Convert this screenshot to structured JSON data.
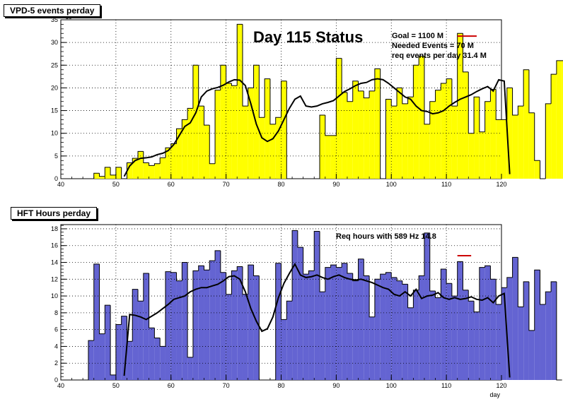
{
  "chart_data": [
    {
      "type": "bar",
      "title": "VPD-5 events perday",
      "annotation_main": "Day 115 Status",
      "info_lines": [
        "Goal =  1100 M",
        "Needed Events =    70 M",
        "req events per day 31.4 M"
      ],
      "exponent_label": "×10⁶",
      "xlabel": "",
      "ylabel": "",
      "xlim": [
        40,
        120
      ],
      "ylim": [
        0,
        35
      ],
      "xticks": [
        40,
        50,
        60,
        70,
        80,
        90,
        100,
        110,
        120
      ],
      "yticks": [
        0,
        5,
        10,
        15,
        20,
        25,
        30,
        35
      ],
      "grid": true,
      "colors": {
        "fill": "#ffff00",
        "line": "#000000",
        "goal_marker": "#cc0000"
      },
      "bins": {
        "x_start": 45,
        "bin_width": 1,
        "values": [
          0,
          1.2,
          0.5,
          2.5,
          0.8,
          2.5,
          0,
          3.5,
          4.5,
          6,
          3.5,
          2.9,
          3.3,
          4.6,
          6.8,
          7.7,
          11,
          13,
          15.5,
          25,
          16,
          11.8,
          3.3,
          19.5,
          25,
          21,
          20.5,
          34,
          16,
          20,
          25,
          13.5,
          22,
          12,
          13.5,
          21.5,
          0,
          0,
          0,
          0,
          0,
          0,
          14,
          9.5,
          9.5,
          26.5,
          19,
          17,
          21.5,
          19.3,
          17.8,
          19.3,
          24.2,
          0,
          17.5,
          16,
          20,
          16.5,
          18,
          25,
          27,
          12,
          17,
          19.5,
          21,
          22,
          16,
          32,
          23.5,
          10,
          18,
          10.3,
          17,
          19.7,
          13,
          13,
          20,
          14,
          16,
          24,
          14.5,
          4,
          0,
          16.5,
          23,
          26,
          26,
          24.5,
          26.5,
          12,
          28.2,
          21.5,
          15.5,
          0
        ]
      },
      "trend": {
        "x_start": 51,
        "values": [
          0.5,
          2.8,
          4.0,
          4.5,
          4.6,
          4.8,
          5.3,
          5.6,
          6.2,
          7.5,
          9.5,
          11.5,
          12.3,
          14.5,
          18.0,
          19.3,
          19.8,
          20.1,
          20.6,
          21.3,
          21.8,
          21.7,
          20.5,
          16.5,
          12.0,
          9.0,
          8.2,
          8.8,
          10.5,
          13.0,
          15.5,
          17.5,
          18.2,
          16.0,
          15.8,
          16.0,
          16.5,
          16.8,
          17.2,
          18.2,
          19.2,
          19.8,
          20.5,
          21.0,
          21.2,
          21.8,
          22.0,
          21.8,
          21.0,
          20.0,
          19.0,
          18.0,
          17.5,
          16.0,
          15.0,
          14.8,
          14.3,
          14.5,
          15.0,
          16.0,
          16.8,
          17.5,
          18.0,
          18.5,
          19.2,
          19.8,
          20.3,
          19.3,
          21.8,
          21.5,
          1.0
        ]
      },
      "goal_marker": {
        "x": [
          112,
          115.5
        ],
        "y": 31.4
      }
    },
    {
      "type": "bar",
      "title": "HFT Hours perday",
      "annotation_main": "Req hours with  589 Hz 14.8",
      "xlabel": "day",
      "ylabel": "",
      "xlim": [
        40,
        120
      ],
      "ylim": [
        0,
        18.5
      ],
      "xticks": [
        40,
        50,
        60,
        70,
        80,
        90,
        100,
        110,
        120
      ],
      "yticks": [
        0,
        2,
        4,
        6,
        8,
        10,
        12,
        14,
        16,
        18
      ],
      "grid": true,
      "colors": {
        "fill": "#6464d2",
        "line": "#000000",
        "goal_marker": "#cc0000"
      },
      "bins": {
        "x_start": 45,
        "bin_width": 1,
        "values": [
          4.7,
          13.8,
          5.5,
          8.9,
          0.6,
          6.6,
          7.6,
          4.6,
          10.8,
          9.4,
          12.7,
          6.2,
          5.0,
          4.0,
          12.9,
          12.8,
          11.8,
          14.0,
          2.7,
          13.0,
          13.6,
          13.1,
          14.2,
          15.4,
          12.8,
          10.2,
          13.0,
          13.5,
          10.2,
          13.7,
          12.4,
          0,
          0,
          0,
          13.9,
          7.2,
          9.4,
          17.8,
          15.8,
          12.6,
          13.0,
          17.7,
          10.5,
          13.4,
          13.7,
          13.4,
          13.9,
          12.7,
          11.8,
          14.4,
          12.4,
          7.5,
          12.0,
          12.6,
          12.8,
          12.2,
          11.8,
          11.4,
          8.6,
          10.7,
          12.4,
          17.5,
          10.6,
          9.8,
          13.2,
          11.5,
          10.0,
          14.1,
          10.7,
          9.4,
          8.1,
          13.4,
          13.6,
          12.0,
          9.0,
          11.0,
          12.2,
          14.6,
          8.7,
          11.7,
          5.9,
          13.1,
          9.0,
          10.5,
          11.7,
          0
        ]
      },
      "trend": {
        "x_start": 51,
        "values": [
          0.5,
          7.8,
          7.7,
          7.5,
          7.2,
          7.6,
          8.0,
          8.5,
          9.0,
          9.6,
          9.8,
          10.0,
          10.5,
          10.8,
          11.0,
          11.0,
          11.2,
          11.4,
          11.8,
          12.3,
          12.4,
          12.0,
          10.5,
          8.5,
          7.0,
          5.8,
          6.1,
          7.5,
          9.8,
          11.5,
          12.7,
          13.8,
          12.5,
          12.2,
          12.3,
          12.5,
          12.2,
          12.0,
          12.3,
          12.5,
          12.2,
          12.0,
          11.9,
          12.0,
          11.8,
          11.6,
          11.3,
          11.0,
          10.8,
          10.2,
          10.0,
          10.5,
          10.0,
          10.8,
          9.7,
          10.0,
          10.1,
          10.4,
          9.8,
          9.6,
          9.8,
          9.6,
          9.7,
          9.9,
          9.6,
          9.5,
          9.8,
          9.2,
          10.0,
          10.3,
          0.3
        ]
      },
      "goal_marker": {
        "x": [
          112,
          114.5
        ],
        "y": 14.8
      }
    }
  ]
}
